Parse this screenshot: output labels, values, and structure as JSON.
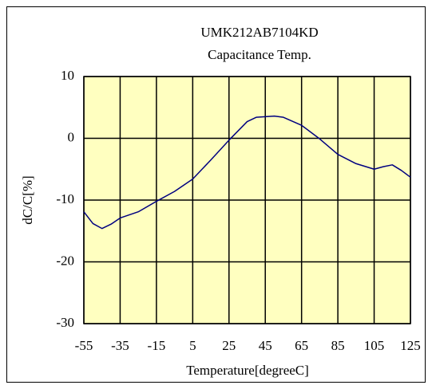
{
  "chart_data": {
    "type": "line",
    "title": "UMK212AB7104KD",
    "subtitle": "Capacitance Temp.",
    "xlabel": "Temperature[degreeC]",
    "ylabel": "dC/C[%]",
    "x": [
      -55,
      -50,
      -45,
      -40,
      -35,
      -25,
      -15,
      -5,
      5,
      15,
      25,
      35,
      40,
      50,
      55,
      65,
      75,
      85,
      95,
      105,
      110,
      115,
      120,
      125
    ],
    "series": [
      {
        "name": "UMK212AB7104KD",
        "color": "#000080",
        "values": [
          -11.9,
          -13.8,
          -14.6,
          -13.9,
          -12.9,
          -11.9,
          -10.2,
          -8.6,
          -6.6,
          -3.5,
          -0.3,
          2.7,
          3.4,
          3.6,
          3.4,
          2.1,
          -0.1,
          -2.6,
          -4.1,
          -5.0,
          -4.6,
          -4.3,
          -5.2,
          -6.3
        ]
      }
    ],
    "xlim": [
      -55,
      125
    ],
    "xticks": [
      -55,
      -35,
      -15,
      5,
      25,
      45,
      65,
      85,
      105,
      125
    ],
    "ylim": [
      -30,
      10
    ],
    "yticks": [
      -30,
      -20,
      -10,
      0,
      10
    ],
    "grid": true,
    "plot_background": "#ffffc0"
  }
}
